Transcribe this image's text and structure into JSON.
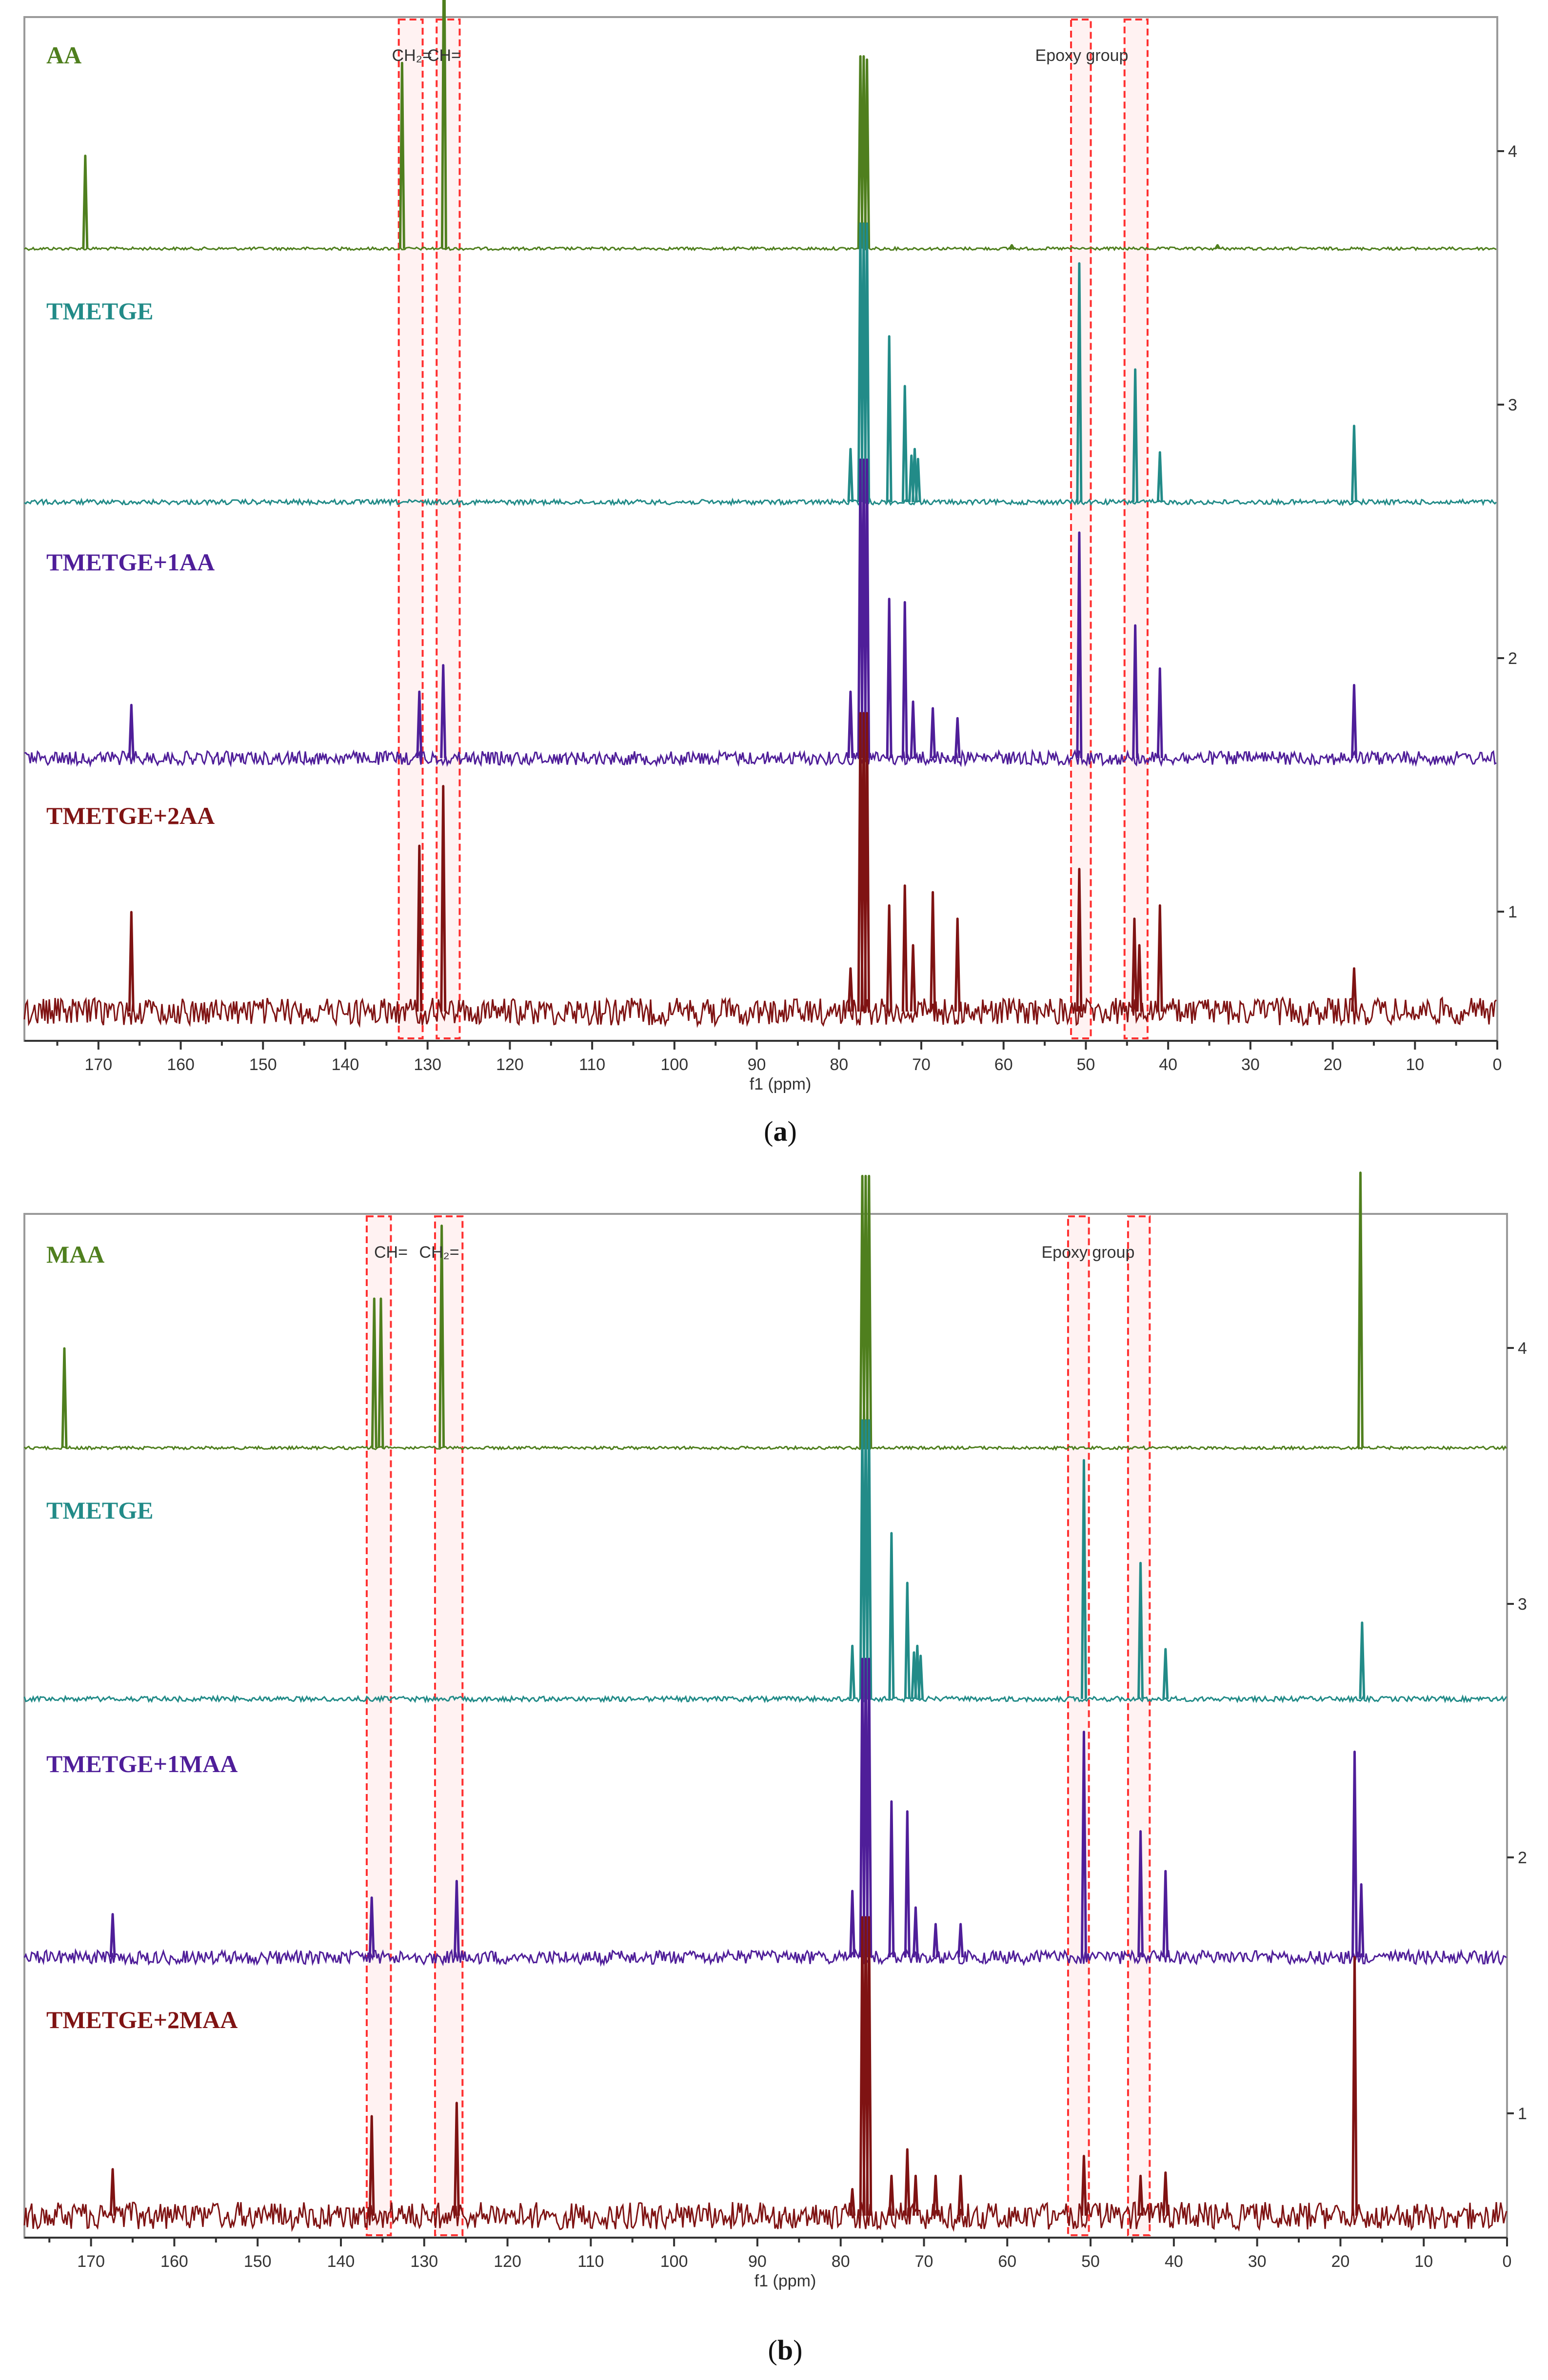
{
  "chart_data": [
    {
      "type": "line",
      "panel_letter": "a",
      "xlabel": "f1 (ppm)",
      "xlim": [
        179,
        0
      ],
      "x_ticks": [
        170,
        160,
        150,
        140,
        130,
        120,
        110,
        100,
        90,
        80,
        70,
        60,
        50,
        40,
        30,
        20,
        10,
        0
      ],
      "right_ticks": [
        "4",
        "3",
        "2",
        "1"
      ],
      "annotations": [
        {
          "label": "CH₂=",
          "ppm": 131.9
        },
        {
          "label": "CH=",
          "ppm": 128.0
        },
        {
          "label": "Epoxy group",
          "ppm": 50.5
        }
      ],
      "highlight_boxes": [
        [
          130.6,
          133.5
        ],
        [
          126.1,
          128.9
        ],
        [
          49.4,
          51.8
        ],
        [
          42.5,
          45.3
        ]
      ],
      "series": [
        {
          "name": "AA",
          "color": "#4f7f1e",
          "peaks": [
            [
              171.6,
              0.28
            ],
            [
              133.1,
              0.56
            ],
            [
              128.0,
              1.0
            ],
            [
              77.4,
              0.58
            ],
            [
              77.0,
              0.58
            ],
            [
              76.6,
              0.57
            ],
            [
              59.0,
              0.01
            ],
            [
              34.0,
              0.01
            ]
          ]
        },
        {
          "name": "TMETGE",
          "color": "#228b88",
          "peaks": [
            [
              78.6,
              0.16
            ],
            [
              77.4,
              0.84
            ],
            [
              77.0,
              0.84
            ],
            [
              76.6,
              0.84
            ],
            [
              73.9,
              0.5
            ],
            [
              72.0,
              0.35
            ],
            [
              71.2,
              0.14
            ],
            [
              70.8,
              0.16
            ],
            [
              70.4,
              0.13
            ],
            [
              50.8,
              0.72
            ],
            [
              44.0,
              0.4
            ],
            [
              41.0,
              0.15
            ],
            [
              17.4,
              0.23
            ]
          ]
        },
        {
          "name": "TMETGE+1AA",
          "color": "#4f1e99",
          "peaks": [
            [
              166.0,
              0.16
            ],
            [
              131.0,
              0.2
            ],
            [
              128.1,
              0.28
            ],
            [
              78.6,
              0.2
            ],
            [
              77.4,
              0.9
            ],
            [
              77.0,
              0.9
            ],
            [
              76.6,
              0.9
            ],
            [
              73.9,
              0.48
            ],
            [
              72.0,
              0.47
            ],
            [
              71.0,
              0.17
            ],
            [
              68.6,
              0.15
            ],
            [
              65.6,
              0.12
            ],
            [
              50.8,
              0.68
            ],
            [
              44.0,
              0.4
            ],
            [
              41.0,
              0.27
            ],
            [
              17.4,
              0.22
            ]
          ]
        },
        {
          "name": "TMETGE+2AA",
          "color": "#7f1313",
          "peaks": [
            [
              166.0,
              0.3
            ],
            [
              131.0,
              0.5
            ],
            [
              128.1,
              0.68
            ],
            [
              78.6,
              0.13
            ],
            [
              77.4,
              0.9
            ],
            [
              77.0,
              0.9
            ],
            [
              76.6,
              0.9
            ],
            [
              73.9,
              0.32
            ],
            [
              72.0,
              0.38
            ],
            [
              71.0,
              0.2
            ],
            [
              68.6,
              0.36
            ],
            [
              65.6,
              0.28
            ],
            [
              50.8,
              0.43
            ],
            [
              44.1,
              0.28
            ],
            [
              43.5,
              0.2
            ],
            [
              41.0,
              0.32
            ],
            [
              17.4,
              0.13
            ]
          ]
        }
      ]
    },
    {
      "type": "line",
      "panel_letter": "b",
      "xlabel": "f1 (ppm)",
      "xlim": [
        178,
        0
      ],
      "x_ticks": [
        170,
        160,
        150,
        140,
        130,
        120,
        110,
        100,
        90,
        80,
        70,
        60,
        50,
        40,
        30,
        20,
        10,
        0
      ],
      "right_ticks": [
        "4",
        "3",
        "2",
        "1"
      ],
      "annotations": [
        {
          "label": "CH=",
          "ppm": 134.0
        },
        {
          "label": "CH₂=",
          "ppm": 128.2
        },
        {
          "label": "Epoxy group",
          "ppm": 50.3
        }
      ],
      "highlight_boxes": [
        [
          134.0,
          136.9
        ],
        [
          125.4,
          128.7
        ],
        [
          50.2,
          52.7
        ],
        [
          42.9,
          45.5
        ]
      ],
      "series": [
        {
          "name": "MAA",
          "color": "#4f7f1e",
          "peaks": [
            [
              173.2,
              0.3
            ],
            [
              136.0,
              0.45
            ],
            [
              135.2,
              0.45
            ],
            [
              127.9,
              0.67
            ],
            [
              77.4,
              0.82
            ],
            [
              77.0,
              0.82
            ],
            [
              76.6,
              0.82
            ],
            [
              17.6,
              0.83
            ]
          ]
        },
        {
          "name": "TMETGE",
          "color": "#228b88",
          "peaks": [
            [
              78.6,
              0.16
            ],
            [
              77.4,
              0.84
            ],
            [
              77.0,
              0.84
            ],
            [
              76.6,
              0.84
            ],
            [
              73.9,
              0.5
            ],
            [
              72.0,
              0.35
            ],
            [
              71.2,
              0.14
            ],
            [
              70.8,
              0.16
            ],
            [
              70.4,
              0.13
            ],
            [
              50.8,
              0.72
            ],
            [
              44.0,
              0.41
            ],
            [
              41.0,
              0.15
            ],
            [
              17.4,
              0.23
            ]
          ]
        },
        {
          "name": "TMETGE+1MAA",
          "color": "#4f1e99",
          "peaks": [
            [
              167.4,
              0.13
            ],
            [
              136.3,
              0.18
            ],
            [
              126.1,
              0.23
            ],
            [
              78.6,
              0.2
            ],
            [
              77.4,
              0.9
            ],
            [
              77.0,
              0.9
            ],
            [
              76.6,
              0.9
            ],
            [
              73.9,
              0.47
            ],
            [
              72.0,
              0.44
            ],
            [
              71.0,
              0.15
            ],
            [
              68.6,
              0.1
            ],
            [
              65.6,
              0.1
            ],
            [
              50.8,
              0.68
            ],
            [
              44.0,
              0.38
            ],
            [
              41.0,
              0.26
            ],
            [
              18.3,
              0.62
            ],
            [
              17.5,
              0.22
            ]
          ]
        },
        {
          "name": "TMETGE+2MAA",
          "color": "#7f1313",
          "peaks": [
            [
              167.4,
              0.14
            ],
            [
              136.3,
              0.3
            ],
            [
              126.1,
              0.34
            ],
            [
              78.6,
              0.08
            ],
            [
              77.4,
              0.9
            ],
            [
              77.0,
              0.9
            ],
            [
              76.6,
              0.9
            ],
            [
              73.9,
              0.12
            ],
            [
              72.0,
              0.2
            ],
            [
              71.0,
              0.12
            ],
            [
              68.6,
              0.12
            ],
            [
              65.6,
              0.12
            ],
            [
              50.8,
              0.18
            ],
            [
              44.0,
              0.12
            ],
            [
              41.0,
              0.13
            ],
            [
              18.3,
              0.78
            ]
          ]
        }
      ]
    }
  ]
}
